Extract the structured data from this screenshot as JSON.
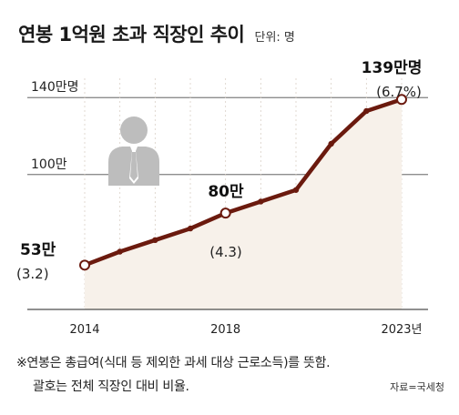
{
  "header": {
    "title": "연봉 1억원 초과 직장인 추이",
    "unit": "단위: 명"
  },
  "chart_data": {
    "type": "area",
    "title": "연봉 1억원 초과 직장인 추이",
    "unit": "단위: 명",
    "x": [
      2014,
      2015,
      2016,
      2017,
      2018,
      2019,
      2020,
      2021,
      2022,
      2023
    ],
    "values": [
      53,
      60,
      66,
      72,
      80,
      86,
      92,
      116,
      133,
      139
    ],
    "ylim": [
      30,
      150
    ],
    "y_ticks": [
      {
        "value": 100,
        "label": "100만"
      },
      {
        "value": 140,
        "label": "140만명"
      }
    ],
    "x_ticks": [
      {
        "value": 2014,
        "label": "2014"
      },
      {
        "value": 2018,
        "label": "2018"
      },
      {
        "value": 2023,
        "label": "2023년"
      }
    ],
    "annotations": [
      {
        "x": 2014,
        "value_label": "53만",
        "ratio_label": "(3.2)"
      },
      {
        "x": 2018,
        "value_label": "80만",
        "ratio_label": "(4.3)"
      },
      {
        "x": 2023,
        "value_label": "139만명",
        "ratio_label": "(6.7%)"
      }
    ],
    "line_color": "#6b1a0e",
    "fill_color": "#f7f1ea",
    "grid": true
  },
  "footnotes": {
    "line1": "※연봉은 총급여(식대 등 제외한 과세 대상 근로소득)를 뜻함.",
    "line2": "괄호는 전체 직장인 대비 비율.",
    "source": "자료=국세청"
  },
  "icon": "businessman-silhouette-icon"
}
